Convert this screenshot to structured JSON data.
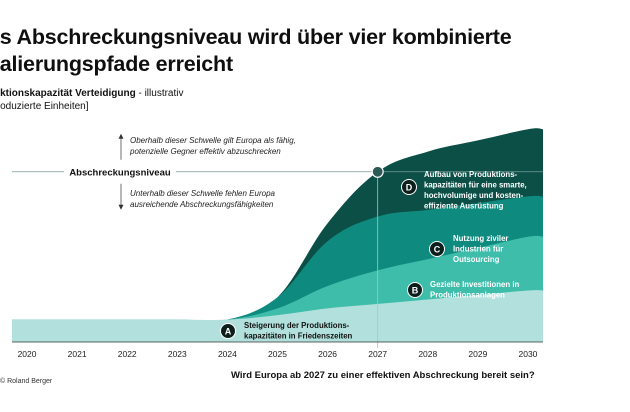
{
  "title": "as Abschreckungsniveau wird über vier kombinierte\nkalierungspfade erreicht",
  "y_label": {
    "bold": "uktionskapazität Verteidigung",
    "normal": " - illustrativ",
    "line2": "roduzierte Einheiten]"
  },
  "threshold": {
    "label": "Abschreckungsniveau",
    "above": [
      "Oberhalb dieser Schwelle gilt Europa als fähig,",
      "potenzielle Gegner effektiv abzuschrecken"
    ],
    "below": [
      "Unterhalb dieser Schwelle fehlen Europa",
      "ausreichende Abschreckungsfähigkeiten"
    ]
  },
  "question": "Wird Europa ab 2027 zu einer effektiven Abschreckung bereit sein?",
  "brand": "Roland Berger",
  "colors": {
    "A": "#b2e0dc",
    "B": "#3dbdaa",
    "C": "#0f8a7e",
    "D": "#0b4f47",
    "ink": "#0d1f1c"
  },
  "chart_data": {
    "type": "area",
    "x": [
      2020,
      2021,
      2022,
      2023,
      2024,
      2025,
      2026,
      2027,
      2028,
      2029,
      2030
    ],
    "xlim": [
      2019.7,
      2030.3
    ],
    "ylim": [
      0,
      10
    ],
    "threshold_value": 7.6,
    "threshold_year": 2027,
    "series": [
      {
        "key": "A",
        "name": "Steigerung der Produktionskapazitäten in Friedenszeiten",
        "label_lines": [
          "Steigerung der Produktions-",
          "kapazitäten in Friedenszeiten"
        ],
        "values": [
          1.0,
          1.0,
          1.0,
          1.0,
          1.0,
          1.2,
          1.5,
          1.7,
          1.9,
          2.1,
          2.3
        ]
      },
      {
        "key": "B",
        "name": "Gezielte Investitionen in Produktionsanlagen",
        "label_lines": [
          "Gezielte Investitionen in",
          "Produktionsanlagen"
        ],
        "values": [
          0,
          0,
          0,
          0,
          0,
          0.3,
          1.0,
          1.5,
          1.8,
          2.1,
          2.4
        ]
      },
      {
        "key": "C",
        "name": "Nutzung ziviler Industrien für Outsourcing",
        "label_lines": [
          "Nutzung ziviler",
          "Industrien für",
          "Outsourcing"
        ],
        "values": [
          0,
          0,
          0,
          0,
          0,
          0.5,
          2.0,
          2.4,
          2.2,
          2.0,
          1.8
        ]
      },
      {
        "key": "D",
        "name": "Aufbau von Produktionskapazitäten für eine smarte, hochvolumige und kosteneffiziente Ausrüstung",
        "label_lines": [
          "Aufbau von Produktions-",
          "kapazitäten für eine smarte,",
          "hochvolumige und kosten-",
          "effiziente Ausrüstung"
        ],
        "values": [
          0,
          0,
          0,
          0,
          0,
          0.0,
          0.8,
          2.0,
          2.6,
          2.8,
          3.0
        ]
      }
    ]
  }
}
